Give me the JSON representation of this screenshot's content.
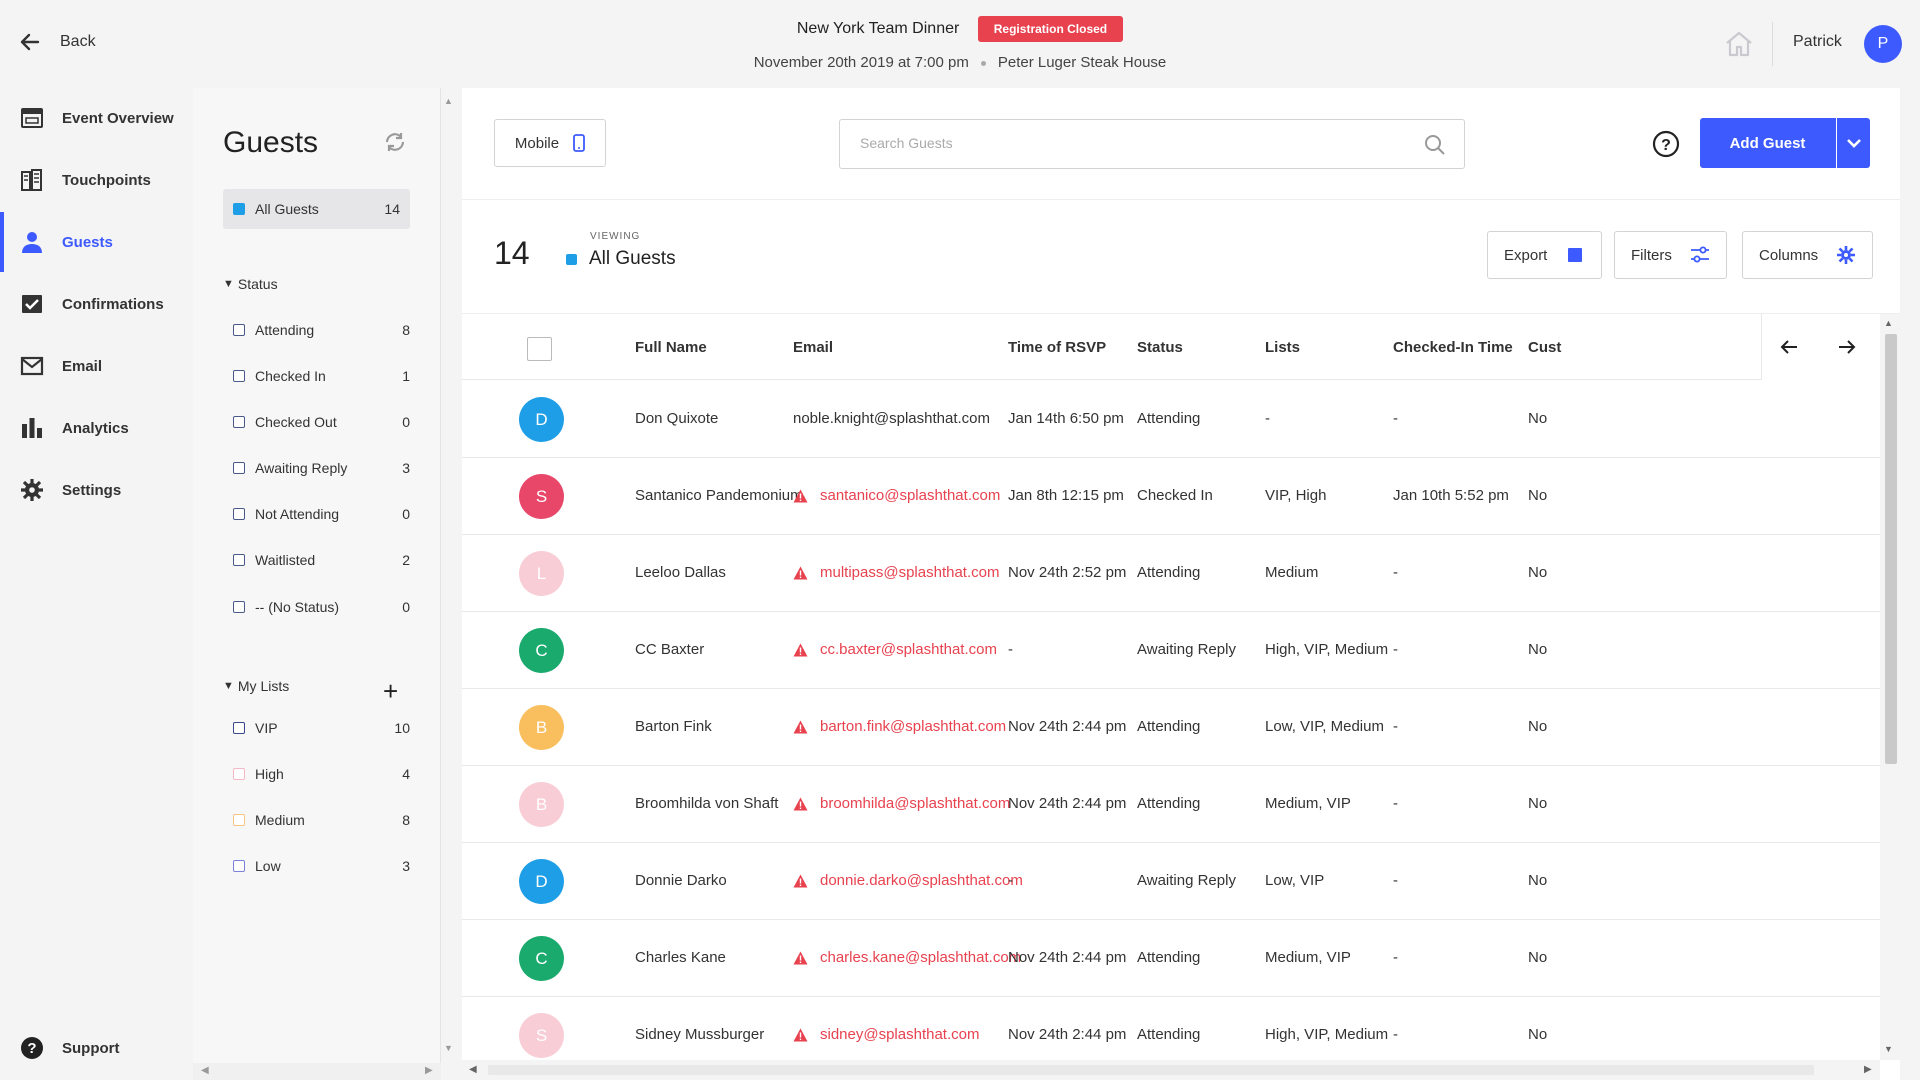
{
  "header": {
    "back_label": "Back",
    "event_title": "New York Team Dinner",
    "registration_badge": "Registration Closed",
    "event_datetime": "November 20th 2019 at 7:00 pm",
    "event_venue": "Peter Luger Steak House",
    "user_name": "Patrick",
    "user_initial": "P"
  },
  "nav": {
    "items": [
      {
        "label": "Event Overview",
        "icon": "calendar-icon"
      },
      {
        "label": "Touchpoints",
        "icon": "touchpoints-icon"
      },
      {
        "label": "Guests",
        "icon": "person-icon",
        "active": true
      },
      {
        "label": "Confirmations",
        "icon": "check-box-icon"
      },
      {
        "label": "Email",
        "icon": "envelope-icon"
      },
      {
        "label": "Analytics",
        "icon": "bar-chart-icon"
      },
      {
        "label": "Settings",
        "icon": "gear-icon"
      }
    ],
    "support_label": "Support"
  },
  "sidebar": {
    "title": "Guests",
    "all_guests": {
      "label": "All Guests",
      "count": "14"
    },
    "status_heading": "Status",
    "statuses": [
      {
        "label": "Attending",
        "count": "8"
      },
      {
        "label": "Checked In",
        "count": "1"
      },
      {
        "label": "Checked Out",
        "count": "0"
      },
      {
        "label": "Awaiting Reply",
        "count": "3"
      },
      {
        "label": "Not Attending",
        "count": "0"
      },
      {
        "label": "Waitlisted",
        "count": "2"
      },
      {
        "label": "-- (No Status)",
        "count": "0"
      }
    ],
    "lists_heading": "My Lists",
    "lists": [
      {
        "label": "VIP",
        "count": "10",
        "color": "#3a4a8a"
      },
      {
        "label": "High",
        "count": "4",
        "color": "#f5b8c4"
      },
      {
        "label": "Medium",
        "count": "8",
        "color": "#f7c585"
      },
      {
        "label": "Low",
        "count": "3",
        "color": "#7b80d8"
      }
    ]
  },
  "toolbar": {
    "mobile_label": "Mobile",
    "search_placeholder": "Search Guests",
    "add_guest_label": "Add Guest",
    "export_label": "Export",
    "filters_label": "Filters",
    "columns_label": "Columns"
  },
  "summary": {
    "count": "14",
    "viewing_label": "VIEWING",
    "viewing_value": "All Guests"
  },
  "table": {
    "columns": [
      "Full Name",
      "Email",
      "Time of RSVP",
      "Status",
      "Lists",
      "Checked-In Time",
      "Cust"
    ],
    "rows": [
      {
        "initial": "D",
        "color": "#1e9ee6",
        "name": "Don Quixote",
        "email": "noble.knight@splashthat.com",
        "warn": false,
        "rsvp": "Jan 14th 6:50 pm",
        "status": "Attending",
        "lists": "-",
        "checkin": "-",
        "custom": "No"
      },
      {
        "initial": "S",
        "color": "#e8476a",
        "name": "Santanico Pandemonium",
        "email": "santanico@splashthat.com",
        "warn": true,
        "rsvp": "Jan 8th 12:15 pm",
        "status": "Checked In",
        "lists": "VIP, High",
        "checkin": "Jan 10th 5:52 pm",
        "custom": "No"
      },
      {
        "initial": "L",
        "color": "#f9cdd6",
        "name": "Leeloo Dallas",
        "email": "multipass@splashthat.com",
        "warn": true,
        "rsvp": "Nov 24th 2:52 pm",
        "status": "Attending",
        "lists": "Medium",
        "checkin": "-",
        "custom": "No"
      },
      {
        "initial": "C",
        "color": "#1aaa6e",
        "name": "CC Baxter",
        "email": "cc.baxter@splashthat.com",
        "warn": true,
        "rsvp": "-",
        "status": "Awaiting Reply",
        "lists": "High, VIP, Medium",
        "checkin": "-",
        "custom": "No"
      },
      {
        "initial": "B",
        "color": "#f9bf5e",
        "name": "Barton Fink",
        "email": "barton.fink@splashthat.com",
        "warn": true,
        "rsvp": "Nov 24th 2:44 pm",
        "status": "Attending",
        "lists": "Low, VIP, Medium",
        "checkin": "-",
        "custom": "No"
      },
      {
        "initial": "B",
        "color": "#f9cdd6",
        "name": "Broomhilda von Shaft",
        "email": "broomhilda@splashthat.com",
        "warn": true,
        "rsvp": "Nov 24th 2:44 pm",
        "status": "Attending",
        "lists": "Medium, VIP",
        "checkin": "-",
        "custom": "No"
      },
      {
        "initial": "D",
        "color": "#1e9ee6",
        "name": "Donnie Darko",
        "email": "donnie.darko@splashthat.com",
        "warn": true,
        "rsvp": "-",
        "status": "Awaiting Reply",
        "lists": "Low, VIP",
        "checkin": "-",
        "custom": "No"
      },
      {
        "initial": "C",
        "color": "#1aaa6e",
        "name": "Charles Kane",
        "email": "charles.kane@splashthat.com",
        "warn": true,
        "rsvp": "Nov 24th 2:44 pm",
        "status": "Attending",
        "lists": "Medium, VIP",
        "checkin": "-",
        "custom": "No"
      },
      {
        "initial": "S",
        "color": "#f9cdd6",
        "name": "Sidney Mussburger",
        "email": "sidney@splashthat.com",
        "warn": true,
        "rsvp": "Nov 24th 2:44 pm",
        "status": "Attending",
        "lists": "High, VIP, Medium",
        "checkin": "-",
        "custom": "No"
      }
    ]
  },
  "colors": {
    "accent": "#3d5afe",
    "danger": "#e8424f",
    "all_guests": "#1e9ee6"
  }
}
